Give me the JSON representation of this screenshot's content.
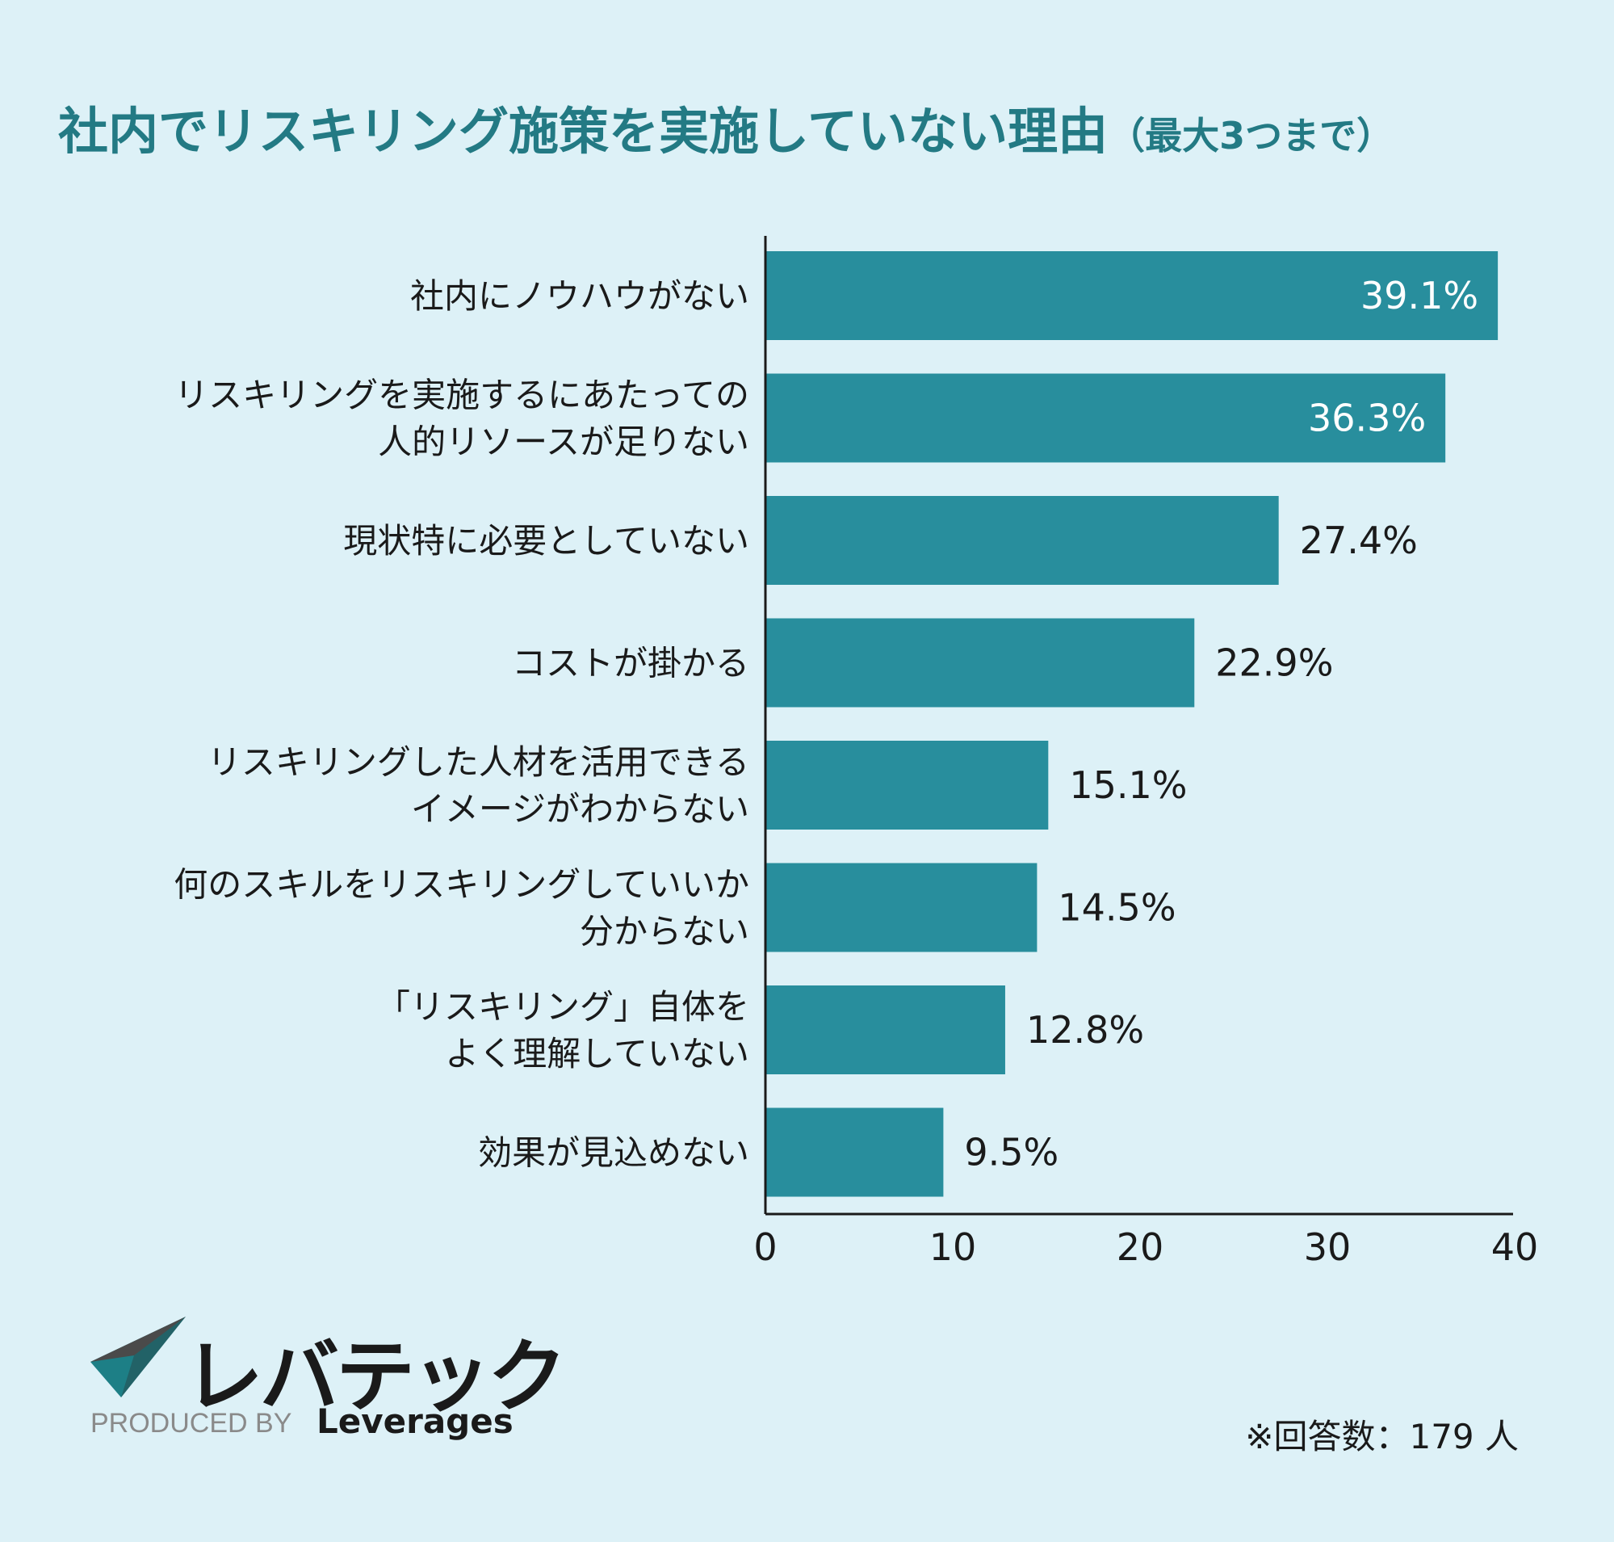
{
  "title": {
    "main": "社内でリスキリング施策を実施していない理由",
    "sub": "（最大3つまで）"
  },
  "colors": {
    "background": "#ddf1f7",
    "bar": "#288e9d",
    "title": "#237a84",
    "text": "#1a1a1a",
    "value_inside": "#ffffff"
  },
  "chart_data": {
    "type": "bar",
    "orientation": "horizontal",
    "categories": [
      [
        "社内にノウハウがない"
      ],
      [
        "リスキリングを実施するにあたっての",
        "人的リソースが足りない"
      ],
      [
        "現状特に必要としていない"
      ],
      [
        "コストが掛かる"
      ],
      [
        "リスキリングした人材を活用できる",
        "イメージがわからない"
      ],
      [
        "何のスキルをリスキリングしていいか",
        "分からない"
      ],
      [
        "「リスキリング」自体を",
        "よく理解していない"
      ],
      [
        "効果が見込めない"
      ]
    ],
    "values": [
      39.1,
      36.3,
      27.4,
      22.9,
      15.1,
      14.5,
      12.8,
      9.5
    ],
    "value_labels": [
      "39.1%",
      "36.3%",
      "27.4%",
      "22.9%",
      "15.1%",
      "14.5%",
      "12.8%",
      "9.5%"
    ],
    "xlim": [
      0,
      40
    ],
    "xticks": [
      "0",
      "10",
      "20",
      "30",
      "40"
    ],
    "grid": false,
    "legend": "none"
  },
  "logo": {
    "name": "レバテック",
    "produced_by": "PRODUCED BY",
    "brand": "Leverages"
  },
  "note": "※回答数：179 人"
}
